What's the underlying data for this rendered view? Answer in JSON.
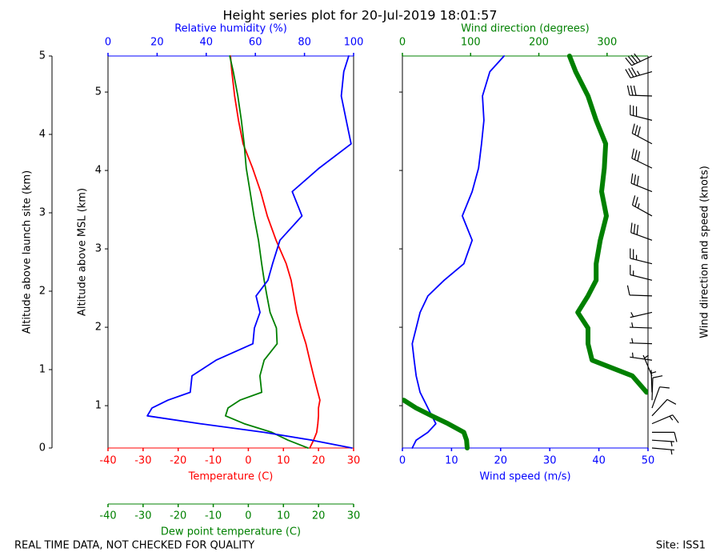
{
  "title": "Height series plot for 20-Jul-2019 18:01:57",
  "footer_left": "REAL TIME DATA, NOT CHECKED FOR QUALITY",
  "footer_right": "Site: ISS1",
  "chart_data": [
    {
      "type": "line",
      "altitude": [
        0.46,
        0.56,
        0.66,
        0.77,
        0.87,
        0.97,
        1.07,
        1.17,
        1.38,
        1.58,
        1.79,
        1.99,
        2.19,
        2.4,
        2.6,
        2.81,
        3.11,
        3.42,
        3.73,
        4.03,
        4.34,
        4.64,
        4.95,
        5.26,
        5.46
      ],
      "ylabel": "Altitude above MSL (km)",
      "ylim": [
        0.46,
        5.46
      ],
      "yticks": [
        1,
        2,
        3,
        4,
        5
      ],
      "launch_ylabel": "Altitude above launch site (km)",
      "launch_ylim": [
        0,
        5
      ],
      "launch_yticks": [
        0,
        1,
        2,
        3,
        4,
        5
      ],
      "xlabel": "Temperature (C)",
      "xlim": [
        -40,
        30
      ],
      "xticks": [
        -40,
        -30,
        -20,
        -10,
        0,
        10,
        20,
        30
      ],
      "xcolor": "#ff0000",
      "x2label": "Relative humidity (%)",
      "x2lim": [
        0,
        100
      ],
      "x2ticks": [
        0,
        20,
        40,
        60,
        80,
        100
      ],
      "x2color": "#0000ff",
      "x3label": "Dew point temperature (C)",
      "x3lim": [
        -40,
        30
      ],
      "x3ticks": [
        -40,
        -30,
        -20,
        -10,
        0,
        10,
        20,
        30
      ],
      "x3color": "#008000",
      "series": [
        {
          "axis": "x",
          "color": "#ff0000",
          "values": [
            17.5,
            18.6,
            19.5,
            19.8,
            20,
            20,
            20.4,
            19.8,
            18.6,
            17.5,
            16.4,
            15,
            13.8,
            13,
            12.2,
            10.8,
            7.9,
            5.4,
            3.5,
            1.2,
            -1.5,
            -2.8,
            -3.9,
            -4.7,
            -5.1
          ]
        },
        {
          "axis": "x3",
          "color": "#008000",
          "values": [
            17,
            11.3,
            6.7,
            -1.2,
            -6.5,
            -5.8,
            -2.4,
            3.8,
            3.3,
            4.5,
            8.2,
            8,
            6.2,
            5.3,
            4.5,
            3.8,
            2.9,
            1.6,
            0.5,
            -0.6,
            -1.2,
            -2,
            -3,
            -4.3,
            -5.3
          ]
        },
        {
          "axis": "x2",
          "color": "#0000ff",
          "values": [
            99.3,
            83,
            63.5,
            37.5,
            16,
            17.9,
            24.4,
            33.5,
            34.2,
            44,
            59,
            59.6,
            61.9,
            60.3,
            65.1,
            67,
            70,
            79,
            75,
            86,
            99,
            97,
            95,
            96,
            98
          ]
        }
      ]
    },
    {
      "type": "wind",
      "altitude": [
        0.46,
        0.56,
        0.66,
        0.77,
        0.87,
        0.97,
        1.07,
        1.17,
        1.38,
        1.58,
        1.79,
        1.99,
        2.19,
        2.4,
        2.6,
        2.81,
        3.11,
        3.42,
        3.73,
        4.03,
        4.34,
        4.64,
        4.95,
        5.26,
        5.46
      ],
      "ylim": [
        0.46,
        5.46
      ],
      "yticks": [
        1,
        2,
        3,
        4,
        5
      ],
      "xlabel": "Wind speed (m/s)",
      "xlim": [
        0,
        50
      ],
      "xticks": [
        0,
        10,
        20,
        30,
        40,
        50
      ],
      "xcolor": "#0000ff",
      "x2label": "Wind direction (degrees)",
      "x2lim": [
        0,
        360
      ],
      "x2ticks": [
        0,
        100,
        200,
        300
      ],
      "x2color": "#008000",
      "barb_label": "Wind direction and speed (knots)",
      "series": [
        {
          "axis": "x",
          "color": "#0000ff",
          "values": [
            2,
            2.8,
            5.2,
            6.8,
            6,
            5.2,
            4.4,
            3.6,
            2.8,
            2.4,
            2,
            2.8,
            3.6,
            5.2,
            8.5,
            12.5,
            14.2,
            12.2,
            14.2,
            15.5,
            16.1,
            16.6,
            16.3,
            17.8,
            20.7
          ]
        },
        {
          "axis": "x2",
          "color": "#008000",
          "values": [
            95,
            94,
            90,
            67,
            43,
            20,
            2,
            358,
            337,
            278,
            272,
            272,
            257,
            272,
            284,
            284,
            290,
            299,
            292,
            296,
            298,
            284,
            272,
            254,
            245
          ]
        }
      ]
    }
  ]
}
